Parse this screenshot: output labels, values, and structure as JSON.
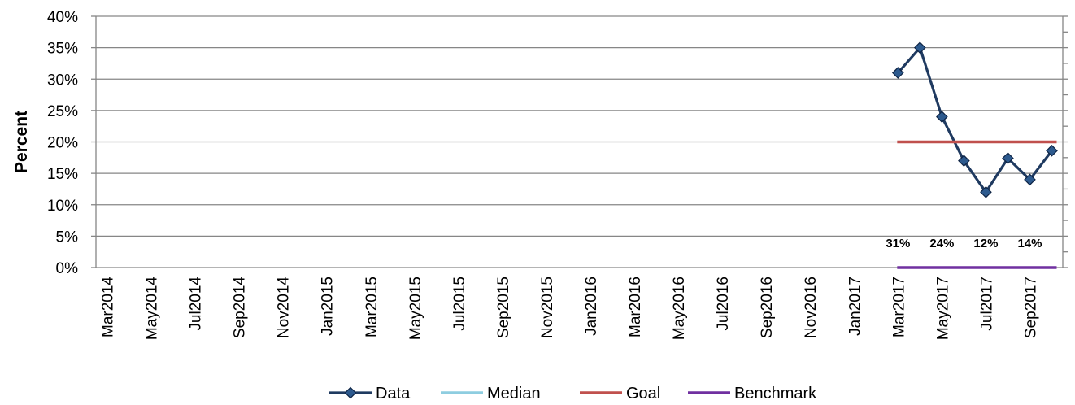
{
  "chart_data": {
    "type": "line",
    "ylabel": "Percent",
    "ylim": [
      0,
      0.4
    ],
    "y_ticks": [
      "0%",
      "5%",
      "10%",
      "15%",
      "20%",
      "25%",
      "30%",
      "35%",
      "40%"
    ],
    "x_tick_labels": [
      "Mar2014",
      "May2014",
      "Jul2014",
      "Sep2014",
      "Nov2014",
      "Jan2015",
      "Mar2015",
      "May2015",
      "Jul2015",
      "Sep2015",
      "Nov2015",
      "Jan2016",
      "Mar2016",
      "May2016",
      "Jul2016",
      "Sep2016",
      "Nov2016",
      "Jan2017",
      "Mar2017",
      "May2017",
      "Jul2017",
      "Sep2017"
    ],
    "months": [
      "Mar2014",
      "Apr2014",
      "May2014",
      "Jun2014",
      "Jul2014",
      "Aug2014",
      "Sep2014",
      "Oct2014",
      "Nov2014",
      "Dec2014",
      "Jan2015",
      "Feb2015",
      "Mar2015",
      "Apr2015",
      "May2015",
      "Jun2015",
      "Jul2015",
      "Aug2015",
      "Sep2015",
      "Oct2015",
      "Nov2015",
      "Dec2015",
      "Jan2016",
      "Feb2016",
      "Mar2016",
      "Apr2016",
      "May2016",
      "Jun2016",
      "Jul2016",
      "Aug2016",
      "Sep2016",
      "Oct2016",
      "Nov2016",
      "Dec2016",
      "Jan2017",
      "Feb2017",
      "Mar2017",
      "Apr2017",
      "May2017",
      "Jun2017",
      "Jul2017",
      "Aug2017",
      "Sep2017",
      "Oct2017"
    ],
    "series": [
      {
        "name": "Data",
        "color": "#1f3a60",
        "marker": "diamond",
        "x": [
          "Mar2017",
          "Apr2017",
          "May2017",
          "Jun2017",
          "Jul2017",
          "Aug2017",
          "Sep2017",
          "Oct2017"
        ],
        "values": [
          0.31,
          0.35,
          0.24,
          0.17,
          0.12,
          0.174,
          0.14,
          0.186
        ]
      },
      {
        "name": "Median",
        "color": "#8ecde0",
        "x": [],
        "values": []
      },
      {
        "name": "Goal",
        "color": "#c0504d",
        "x": [
          "Mar2017",
          "Oct2017"
        ],
        "values": [
          0.2,
          0.2
        ]
      },
      {
        "name": "Benchmark",
        "color": "#7030a0",
        "x": [
          "Mar2017",
          "Oct2017"
        ],
        "values": [
          0.0,
          0.0
        ]
      }
    ],
    "data_labels": [
      {
        "x": "Mar2017",
        "text": "31%"
      },
      {
        "x": "May2017",
        "text": "24%"
      },
      {
        "x": "Jul2017",
        "text": "12%"
      },
      {
        "x": "Sep2017",
        "text": "14%"
      }
    ],
    "grid": true,
    "legend_position": "bottom"
  }
}
